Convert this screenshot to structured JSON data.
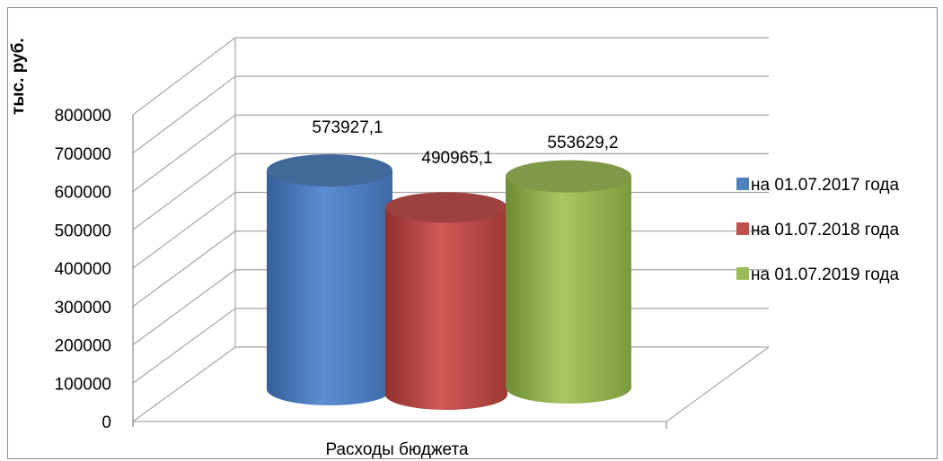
{
  "chart_data": {
    "type": "bar",
    "style": "3d-cylinder",
    "categories": [
      "Расходы бюджета"
    ],
    "series": [
      {
        "name": "на 01.07.2017 года",
        "values": [
          573927.1
        ],
        "label": "573927,1",
        "color": "#4f81bd"
      },
      {
        "name": "на 01.07.2018 года",
        "values": [
          490965.1
        ],
        "label": "490965,1",
        "color": "#c0504d"
      },
      {
        "name": "на 01.07.2019 года",
        "values": [
          553629.2
        ],
        "label": "553629,2",
        "color": "#9bbb59"
      }
    ],
    "ylabel": "тыс. руб.",
    "ylim": [
      0,
      800000
    ],
    "yticks": [
      "0",
      "100000",
      "200000",
      "300000",
      "400000",
      "500000",
      "600000",
      "700000",
      "800000"
    ],
    "grid": true,
    "legend": "right"
  }
}
